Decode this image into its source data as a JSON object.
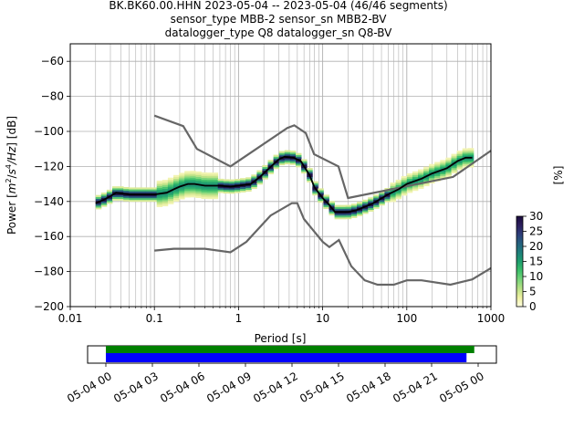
{
  "title_lines": [
    "BK.BK60.00.HHN   2023-05-04 -- 2023-05-04  (46/46 segments)",
    "sensor_type MBB-2 sensor_sn MBB2-BV",
    "datalogger_type Q8 datalogger_sn Q8-BV"
  ],
  "chart_data": {
    "type": "heatmap",
    "xlabel": "Period [s]",
    "ylabel_parts": [
      "Power [",
      "m",
      "2",
      "/",
      "s",
      "4",
      "/Hz",
      "] [dB]"
    ],
    "xscale": "log",
    "xlim": [
      0.01,
      1000
    ],
    "ylim": [
      -200,
      -50
    ],
    "x_ticks": [
      0.01,
      0.1,
      1,
      10,
      100,
      1000
    ],
    "x_tick_labels": [
      "0.01",
      "0.1",
      "1",
      "10",
      "100",
      "1000"
    ],
    "y_ticks": [
      -200,
      -180,
      -160,
      -140,
      -120,
      -100,
      -80,
      -60
    ],
    "y_tick_labels": [
      "−200",
      "−180",
      "−160",
      "−140",
      "−120",
      "−100",
      "−80",
      "−60"
    ],
    "grid": true,
    "high_noise_model": [
      [
        0.1,
        -91
      ],
      [
        0.22,
        -97
      ],
      [
        0.32,
        -110
      ],
      [
        0.8,
        -120
      ],
      [
        3.8,
        -98
      ],
      [
        4.6,
        -96.5
      ],
      [
        6.3,
        -101
      ],
      [
        7.9,
        -113
      ],
      [
        15.4,
        -120
      ],
      [
        20,
        -138
      ],
      [
        354.8,
        -126
      ],
      [
        1000,
        -111
      ]
    ],
    "low_noise_model": [
      [
        0.1,
        -168
      ],
      [
        0.17,
        -167
      ],
      [
        0.4,
        -167
      ],
      [
        0.8,
        -169
      ],
      [
        1.24,
        -163
      ],
      [
        2.4,
        -148
      ],
      [
        4.3,
        -141
      ],
      [
        5,
        -141
      ],
      [
        6,
        -150
      ],
      [
        10,
        -163
      ],
      [
        12,
        -166
      ],
      [
        15.6,
        -162
      ],
      [
        21.9,
        -177
      ],
      [
        31.6,
        -185
      ],
      [
        45,
        -187.5
      ],
      [
        70,
        -187.5
      ],
      [
        100,
        -185
      ],
      [
        150,
        -185
      ],
      [
        330,
        -187.5
      ],
      [
        600,
        -184.5
      ],
      [
        1000,
        -178
      ]
    ],
    "mean_curve": [
      [
        0.02,
        -141
      ],
      [
        0.025,
        -139
      ],
      [
        0.03,
        -137
      ],
      [
        0.035,
        -135
      ],
      [
        0.05,
        -136
      ],
      [
        0.07,
        -136
      ],
      [
        0.1,
        -136
      ],
      [
        0.14,
        -135
      ],
      [
        0.17,
        -133
      ],
      [
        0.2,
        -131.5
      ],
      [
        0.25,
        -130
      ],
      [
        0.3,
        -130
      ],
      [
        0.4,
        -131
      ],
      [
        0.6,
        -131
      ],
      [
        0.8,
        -131.5
      ],
      [
        1.0,
        -131
      ],
      [
        1.4,
        -130
      ],
      [
        1.8,
        -126
      ],
      [
        2.2,
        -122
      ],
      [
        3.0,
        -116
      ],
      [
        3.5,
        -114.5
      ],
      [
        4.5,
        -115
      ],
      [
        5.5,
        -117
      ],
      [
        7.0,
        -125
      ],
      [
        8.0,
        -132
      ],
      [
        10,
        -138
      ],
      [
        12,
        -142
      ],
      [
        14,
        -146
      ],
      [
        20,
        -146
      ],
      [
        25,
        -145
      ],
      [
        30,
        -143.5
      ],
      [
        40,
        -141
      ],
      [
        60,
        -136
      ],
      [
        80,
        -133
      ],
      [
        100,
        -130
      ],
      [
        150,
        -127
      ],
      [
        200,
        -124
      ],
      [
        300,
        -121
      ],
      [
        400,
        -117
      ],
      [
        500,
        -115
      ],
      [
        600,
        -115
      ]
    ],
    "colorbar": {
      "label": "[%]",
      "range": [
        0,
        30
      ],
      "ticks": [
        0,
        5,
        10,
        15,
        20,
        25,
        30
      ],
      "tick_labels": [
        "0",
        "5",
        "10",
        "15",
        "20",
        "25",
        "30"
      ],
      "colors": [
        "#ffffe0",
        "#eef0a2",
        "#b8e186",
        "#77d47a",
        "#3cbf6a",
        "#1e9f6e",
        "#1f7f7c",
        "#25617e",
        "#2d3e7a",
        "#2c1f5e",
        "#1a0a3c"
      ]
    },
    "timeline": {
      "tick_labels": [
        "05-04 00",
        "05-04 03",
        "05-04 06",
        "05-04 09",
        "05-04 12",
        "05-04 15",
        "05-04 18",
        "05-04 21",
        "05-05 00"
      ],
      "data_span_hours": [
        0,
        23.75
      ],
      "used_span_hours": [
        0,
        23.25
      ],
      "data_color": "#008000",
      "used_color": "#0000ff"
    }
  }
}
